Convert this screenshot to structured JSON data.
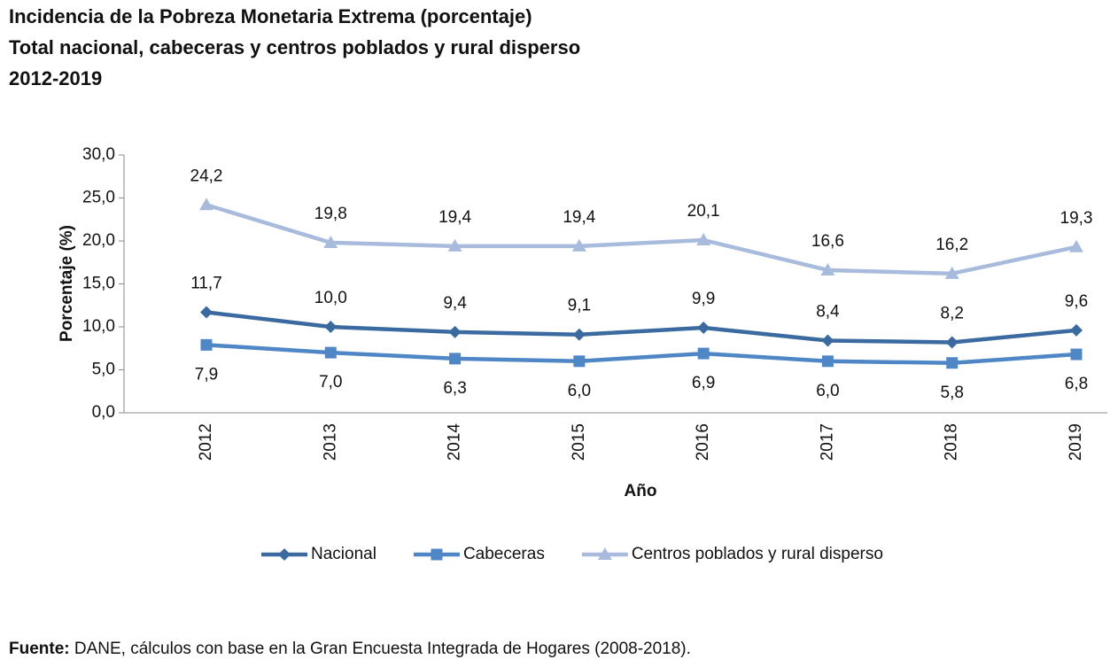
{
  "chart_data": {
    "type": "line",
    "title": [
      "Incidencia de la Pobreza Monetaria Extrema (porcentaje)",
      "Total nacional, cabeceras y centros poblados y rural disperso",
      "2012-2019"
    ],
    "y_label": "Porcentaje (%)",
    "x_label": "Año",
    "categories": [
      "2012",
      "2013",
      "2014",
      "2015",
      "2016",
      "2017",
      "2018",
      "2019"
    ],
    "series": [
      {
        "name": "Nacional",
        "color": "#3b6aa0",
        "marker": "diamond",
        "label_position": "above",
        "values": [
          11.7,
          10.0,
          9.4,
          9.1,
          9.9,
          8.4,
          8.2,
          9.6
        ],
        "value_labels": [
          "11,7",
          "10,0",
          "9,4",
          "9,1",
          "9,9",
          "8,4",
          "8,2",
          "9,6"
        ]
      },
      {
        "name": "Cabeceras",
        "color": "#4f86c6",
        "marker": "square",
        "label_position": "below",
        "values": [
          7.9,
          7.0,
          6.3,
          6.0,
          6.9,
          6.0,
          5.8,
          6.8
        ],
        "value_labels": [
          "7,9",
          "7,0",
          "6,3",
          "6,0",
          "6,9",
          "6,0",
          "5,8",
          "6,8"
        ]
      },
      {
        "name": "Centros poblados y rural disperso",
        "color": "#a8bbdd",
        "marker": "triangle",
        "label_position": "above",
        "values": [
          24.2,
          19.8,
          19.4,
          19.4,
          20.1,
          16.6,
          16.2,
          19.3
        ],
        "value_labels": [
          "24,2",
          "19,8",
          "19,4",
          "19,4",
          "20,1",
          "16,6",
          "16,2",
          "19,3"
        ]
      }
    ],
    "ylim": [
      0,
      30
    ],
    "yticks": [
      {
        "value": 0,
        "label": "0,0"
      },
      {
        "value": 5,
        "label": "5,0"
      },
      {
        "value": 10,
        "label": "10,0"
      },
      {
        "value": 15,
        "label": "15,0"
      },
      {
        "value": 20,
        "label": "20,0"
      },
      {
        "value": 25,
        "label": "25,0"
      },
      {
        "value": 30,
        "label": "30,0"
      }
    ],
    "legend": "bottom",
    "source_label": "Fuente:",
    "source": "DANE, cálculos con base en la Gran Encuesta Integrada de Hogares (2008-2018)."
  }
}
